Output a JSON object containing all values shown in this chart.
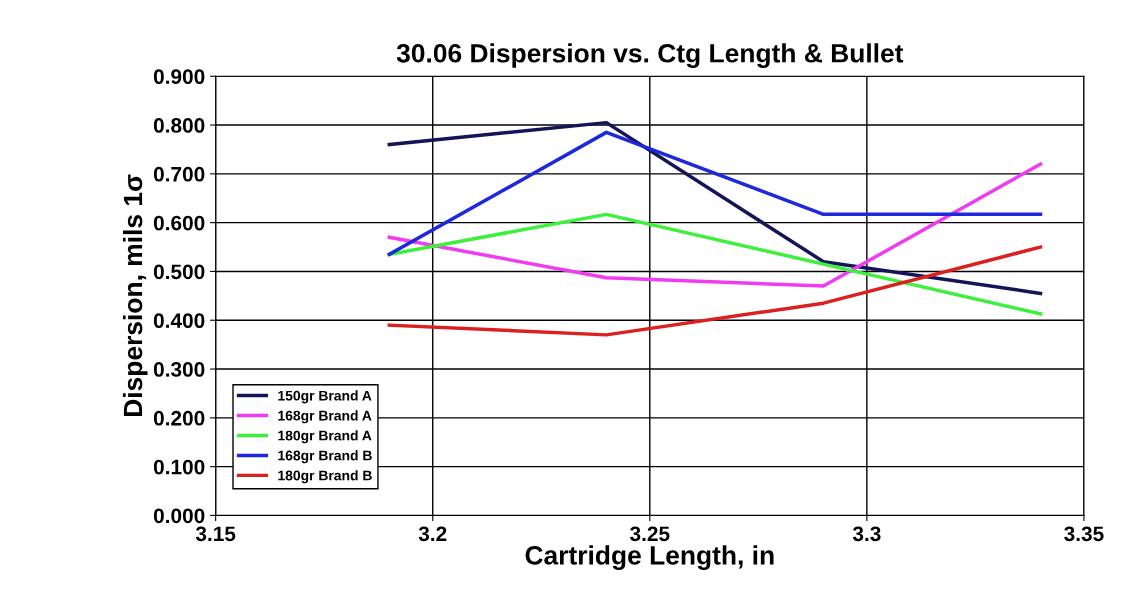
{
  "chart_data": {
    "type": "line",
    "title": "30.06 Dispersion vs. Ctg Length & Bullet",
    "xlabel": "Cartridge Length, in",
    "ylabel": "Dispersion, mils 1σ",
    "x": [
      3.19,
      3.24,
      3.29,
      3.34
    ],
    "series": [
      {
        "name": "150gr Brand A",
        "color": "#14145a",
        "values": [
          0.76,
          0.805,
          0.52,
          0.455
        ]
      },
      {
        "name": "168gr Brand A",
        "color": "#f03cf0",
        "values": [
          0.57,
          0.487,
          0.47,
          0.72
        ]
      },
      {
        "name": "180gr Brand A",
        "color": "#3cf03c",
        "values": [
          0.535,
          0.617,
          0.515,
          0.413
        ]
      },
      {
        "name": "168gr Brand B",
        "color": "#1e28dc",
        "values": [
          0.535,
          0.785,
          0.617,
          0.617
        ]
      },
      {
        "name": "180gr Brand B",
        "color": "#dc2020",
        "values": [
          0.39,
          0.37,
          0.435,
          0.55
        ]
      }
    ],
    "xlim": [
      3.15,
      3.35
    ],
    "xticks": [
      3.15,
      3.2,
      3.25,
      3.3,
      3.35
    ],
    "ylim": [
      0,
      0.9
    ],
    "yticks": [
      {
        "value": 0,
        "label": "0.000"
      },
      {
        "value": 0.1,
        "label": "0.100"
      },
      {
        "value": 0.2,
        "label": "0.200"
      },
      {
        "value": 0.3,
        "label": "0.300"
      },
      {
        "value": 0.4,
        "label": "0.400"
      },
      {
        "value": 0.5,
        "label": "0.500"
      },
      {
        "value": 0.6,
        "label": "0.600"
      },
      {
        "value": 0.7,
        "label": "0.700"
      },
      {
        "value": 0.8,
        "label": "0.800"
      },
      {
        "value": 0.9,
        "label": "0.900"
      }
    ],
    "grid": true,
    "legend": "bottom left",
    "marker": "none",
    "line_style": "solid"
  }
}
